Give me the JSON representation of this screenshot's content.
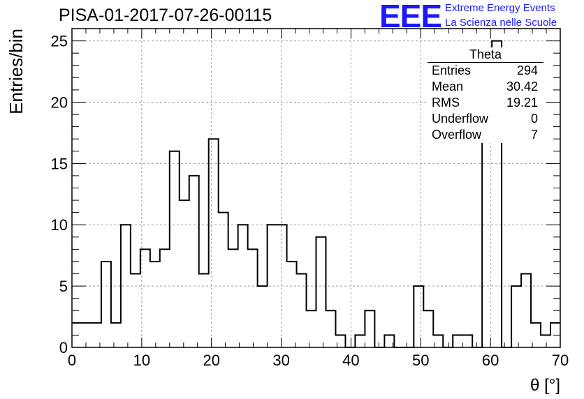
{
  "header": {
    "title": "PISA-01-2017-07-26-00115",
    "logo": "EEE",
    "logo_line1": "Extreme Energy Events",
    "logo_line2": "La Scienza nelle Scuole"
  },
  "stats_box": {
    "title": "Theta",
    "rows": [
      {
        "label": "Entries",
        "value": "294"
      },
      {
        "label": "Mean",
        "value": "30.42"
      },
      {
        "label": "RMS",
        "value": "19.21"
      },
      {
        "label": "Underflow",
        "value": "0"
      },
      {
        "label": "Overflow",
        "value": "7"
      }
    ]
  },
  "chart_data": {
    "type": "histogram",
    "title": "PISA-01-2017-07-26-00115",
    "xlabel": "θ [°]",
    "ylabel": "Entries/bin",
    "xlim": [
      0,
      70
    ],
    "ylim": [
      0,
      26
    ],
    "grid": true,
    "bin_width": 1.4,
    "bin_edges_start": 0,
    "values": [
      2,
      2,
      2,
      7,
      2,
      10,
      6,
      8,
      7,
      8,
      16,
      12,
      14,
      6,
      17,
      11,
      8,
      10,
      8,
      5,
      10,
      10,
      7,
      6,
      3,
      9,
      3,
      1,
      0,
      1,
      3,
      0,
      1,
      0,
      0,
      5,
      3,
      1,
      0,
      1,
      1,
      0,
      20,
      25,
      0,
      5,
      6,
      2,
      1,
      2
    ],
    "xticks": [
      0,
      10,
      20,
      30,
      40,
      50,
      60,
      70
    ],
    "xtick_labels": [
      "0",
      "10",
      "20",
      "30",
      "40",
      "50",
      "60",
      "70"
    ],
    "yticks": [
      0,
      5,
      10,
      15,
      20,
      25
    ],
    "ytick_labels": [
      "0",
      "5",
      "10",
      "15",
      "20",
      "25"
    ],
    "colors": {
      "line": "#000000",
      "grid": "#a0a0a0",
      "logo": "#1a1aff"
    }
  }
}
